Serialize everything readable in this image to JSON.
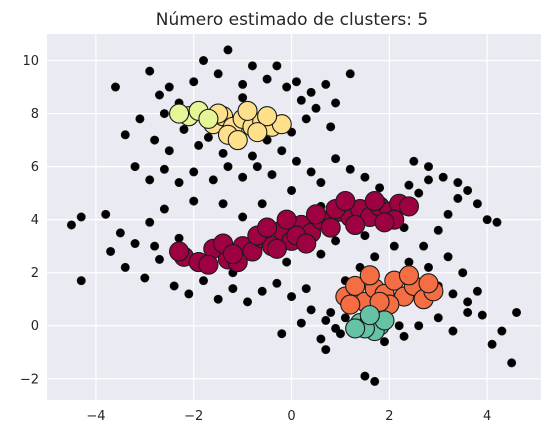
{
  "chart_data": {
    "type": "scatter",
    "title": "Número estimado de clusters: 5",
    "xlabel": "",
    "ylabel": "",
    "xlim": [
      -5.0,
      5.1
    ],
    "ylim": [
      -2.8,
      11.0
    ],
    "xticks": [
      -4,
      -2,
      0,
      2,
      4
    ],
    "yticks": [
      -2,
      0,
      2,
      4,
      6,
      8,
      10
    ],
    "xtick_labels": [
      "−4",
      "−2",
      "0",
      "2",
      "4"
    ],
    "ytick_labels": [
      "−2",
      "0",
      "2",
      "4",
      "6",
      "8",
      "10"
    ],
    "grid": true,
    "plot_background": "#eaeaf2",
    "grid_color": "#ffffff",
    "noise_color": "#000000",
    "cluster_colors": [
      "#9e0142",
      "#f46d43",
      "#fee08b",
      "#e6f598",
      "#66c2a5"
    ],
    "series": [
      {
        "values": [
          [
            -2.9,
            9.6
          ],
          [
            -2.7,
            8.7
          ],
          [
            -2.5,
            9.0
          ],
          [
            -2.3,
            8.4
          ],
          [
            -2.0,
            9.2
          ],
          [
            -1.8,
            10.0
          ],
          [
            -1.5,
            9.5
          ],
          [
            -1.3,
            10.4
          ],
          [
            -1.0,
            9.1
          ],
          [
            -0.8,
            9.8
          ],
          [
            -0.5,
            9.3
          ],
          [
            -0.3,
            9.8
          ],
          [
            -0.1,
            9.0
          ],
          [
            0.1,
            9.2
          ],
          [
            0.4,
            8.8
          ],
          [
            0.7,
            9.1
          ],
          [
            1.2,
            9.5
          ],
          [
            -3.6,
            9.0
          ],
          [
            -3.4,
            7.2
          ],
          [
            -3.1,
            7.8
          ],
          [
            -2.8,
            7.0
          ],
          [
            -2.5,
            6.6
          ],
          [
            -2.2,
            7.4
          ],
          [
            -1.9,
            6.8
          ],
          [
            -1.7,
            7.1
          ],
          [
            -1.4,
            6.5
          ],
          [
            -1.1,
            6.9
          ],
          [
            -0.8,
            6.4
          ],
          [
            -0.5,
            7.0
          ],
          [
            -0.2,
            6.6
          ],
          [
            0.0,
            7.3
          ],
          [
            0.3,
            7.8
          ],
          [
            0.5,
            8.2
          ],
          [
            0.8,
            7.5
          ],
          [
            -3.2,
            6.0
          ],
          [
            -2.9,
            5.5
          ],
          [
            -2.6,
            5.9
          ],
          [
            -2.3,
            5.4
          ],
          [
            -2.0,
            5.8
          ],
          [
            -1.6,
            5.5
          ],
          [
            -1.3,
            6.0
          ],
          [
            -1.0,
            5.6
          ],
          [
            -0.7,
            6.0
          ],
          [
            -0.4,
            5.7
          ],
          [
            0.1,
            6.2
          ],
          [
            0.4,
            5.8
          ],
          [
            -4.5,
            3.8
          ],
          [
            -4.3,
            4.1
          ],
          [
            -3.8,
            4.2
          ],
          [
            -3.5,
            3.5
          ],
          [
            -3.2,
            3.1
          ],
          [
            -2.9,
            3.9
          ],
          [
            -2.6,
            4.4
          ],
          [
            -2.3,
            3.3
          ],
          [
            -2.0,
            4.7
          ],
          [
            -3.4,
            2.2
          ],
          [
            -3.0,
            1.8
          ],
          [
            -2.7,
            2.5
          ],
          [
            -2.4,
            1.5
          ],
          [
            -2.1,
            1.2
          ],
          [
            -1.8,
            1.7
          ],
          [
            -1.5,
            1.0
          ],
          [
            -1.2,
            1.4
          ],
          [
            -0.9,
            0.9
          ],
          [
            -0.6,
            1.3
          ],
          [
            -0.3,
            1.6
          ],
          [
            0.0,
            1.1
          ],
          [
            0.3,
            1.4
          ],
          [
            -4.3,
            1.7
          ],
          [
            0.4,
            0.6
          ],
          [
            0.7,
            0.2
          ],
          [
            0.9,
            -0.1
          ],
          [
            1.1,
            0.3
          ],
          [
            0.6,
            -0.5
          ],
          [
            0.8,
            0.5
          ],
          [
            1.0,
            -0.3
          ],
          [
            0.7,
            -0.9
          ],
          [
            1.5,
            -1.9
          ],
          [
            1.7,
            -2.1
          ],
          [
            2.3,
            -0.4
          ],
          [
            2.6,
            0.0
          ],
          [
            3.0,
            0.3
          ],
          [
            3.3,
            -0.2
          ],
          [
            3.6,
            0.5
          ],
          [
            3.9,
            0.4
          ],
          [
            4.1,
            -0.7
          ],
          [
            4.3,
            -0.2
          ],
          [
            4.5,
            -1.4
          ],
          [
            4.6,
            0.5
          ],
          [
            3.0,
            1.5
          ],
          [
            3.3,
            1.2
          ],
          [
            3.6,
            0.9
          ],
          [
            3.8,
            1.3
          ],
          [
            2.7,
            3.0
          ],
          [
            3.0,
            3.6
          ],
          [
            3.2,
            4.2
          ],
          [
            3.4,
            4.8
          ],
          [
            3.6,
            5.1
          ],
          [
            3.8,
            4.6
          ],
          [
            4.0,
            4.0
          ],
          [
            4.2,
            3.9
          ],
          [
            2.4,
            5.3
          ],
          [
            2.6,
            5.0
          ],
          [
            2.8,
            5.5
          ],
          [
            3.1,
            5.6
          ],
          [
            3.4,
            5.4
          ],
          [
            2.5,
            6.2
          ],
          [
            2.8,
            6.0
          ],
          [
            1.8,
            5.2
          ],
          [
            1.5,
            5.6
          ],
          [
            1.2,
            5.9
          ],
          [
            0.9,
            6.3
          ],
          [
            0.6,
            5.4
          ],
          [
            1.4,
            2.2
          ],
          [
            1.7,
            2.6
          ],
          [
            1.1,
            1.7
          ],
          [
            0.6,
            2.7
          ],
          [
            0.9,
            3.2
          ],
          [
            1.5,
            3.4
          ],
          [
            1.8,
            3.8
          ],
          [
            2.1,
            3.0
          ],
          [
            2.4,
            2.4
          ],
          [
            2.1,
            4.5
          ],
          [
            2.3,
            3.7
          ],
          [
            0.3,
            3.0
          ],
          [
            -0.1,
            2.4
          ],
          [
            -1.2,
            2.0
          ],
          [
            -1.7,
            3.0
          ],
          [
            -2.2,
            2.6
          ],
          [
            -1.0,
            4.1
          ],
          [
            -0.6,
            4.6
          ],
          [
            0.0,
            5.1
          ],
          [
            -1.4,
            4.6
          ],
          [
            0.6,
            4.5
          ],
          [
            -2.8,
            3.0
          ],
          [
            -0.2,
            -0.3
          ],
          [
            0.2,
            0.1
          ],
          [
            1.3,
            0.9
          ],
          [
            2.2,
            0.0
          ],
          [
            1.9,
            -0.6
          ],
          [
            2.0,
            1.3
          ],
          [
            1.2,
            3.9
          ],
          [
            0.8,
            4.0
          ],
          [
            2.8,
            2.2
          ],
          [
            3.2,
            2.6
          ],
          [
            3.5,
            2.0
          ],
          [
            -3.7,
            2.8
          ],
          [
            -2.6,
            8.0
          ],
          [
            -2.2,
            8.1
          ],
          [
            -1.0,
            8.6
          ],
          [
            0.2,
            8.5
          ],
          [
            0.9,
            8.4
          ]
        ]
      },
      {
        "values": [
          [
            -2.2,
            2.6
          ],
          [
            -1.9,
            2.4
          ],
          [
            -1.6,
            2.9
          ],
          [
            -1.3,
            2.5
          ],
          [
            -1.0,
            3.0
          ],
          [
            -0.8,
            2.8
          ],
          [
            -0.6,
            3.3
          ],
          [
            -0.4,
            3.0
          ],
          [
            -0.2,
            3.6
          ],
          [
            0.0,
            3.2
          ],
          [
            0.2,
            3.8
          ],
          [
            0.4,
            3.5
          ],
          [
            0.6,
            4.0
          ],
          [
            0.8,
            3.7
          ],
          [
            1.0,
            4.3
          ],
          [
            1.2,
            4.1
          ],
          [
            1.4,
            4.4
          ],
          [
            1.6,
            4.1
          ],
          [
            1.8,
            4.5
          ],
          [
            2.0,
            4.3
          ],
          [
            2.2,
            4.6
          ],
          [
            2.4,
            4.5
          ],
          [
            -1.7,
            2.3
          ],
          [
            -1.4,
            3.1
          ],
          [
            -1.1,
            2.4
          ],
          [
            -0.7,
            3.4
          ],
          [
            -0.3,
            2.9
          ],
          [
            0.1,
            3.4
          ],
          [
            0.5,
            4.2
          ],
          [
            0.9,
            4.4
          ],
          [
            1.3,
            3.8
          ],
          [
            1.7,
            4.7
          ],
          [
            2.1,
            4.0
          ],
          [
            -2.3,
            2.8
          ],
          [
            -0.5,
            3.7
          ],
          [
            0.3,
            3.1
          ],
          [
            1.1,
            4.7
          ],
          [
            1.9,
            3.9
          ],
          [
            -1.2,
            2.7
          ],
          [
            -0.1,
            4.0
          ]
        ],
        "name": ""
      },
      {
        "values": [
          [
            1.1,
            1.1
          ],
          [
            1.3,
            1.5
          ],
          [
            1.5,
            0.9
          ],
          [
            1.7,
            1.4
          ],
          [
            1.9,
            1.2
          ],
          [
            2.1,
            1.7
          ],
          [
            2.3,
            1.1
          ],
          [
            2.5,
            1.5
          ],
          [
            2.7,
            1.0
          ],
          [
            2.9,
            1.3
          ],
          [
            1.6,
            1.9
          ],
          [
            2.0,
            0.8
          ],
          [
            2.4,
            1.9
          ],
          [
            1.2,
            0.8
          ],
          [
            2.8,
            1.6
          ],
          [
            1.8,
            0.9
          ]
        ]
      },
      {
        "values": [
          [
            -1.6,
            7.6
          ],
          [
            -1.4,
            7.9
          ],
          [
            -1.2,
            7.5
          ],
          [
            -1.0,
            7.8
          ],
          [
            -0.8,
            7.5
          ],
          [
            -0.6,
            7.7
          ],
          [
            -0.4,
            7.5
          ],
          [
            -0.2,
            7.6
          ],
          [
            -1.3,
            7.2
          ],
          [
            -0.9,
            8.1
          ],
          [
            -1.5,
            8.0
          ],
          [
            -0.5,
            7.9
          ],
          [
            -1.1,
            7.0
          ],
          [
            -0.7,
            7.3
          ]
        ]
      },
      {
        "values": [
          [
            -2.1,
            7.9
          ],
          [
            -1.9,
            8.1
          ],
          [
            -1.7,
            7.8
          ],
          [
            -2.3,
            8.0
          ]
        ]
      },
      {
        "values": [
          [
            1.4,
            0.1
          ],
          [
            1.6,
            0.2
          ],
          [
            1.8,
            0.0
          ],
          [
            1.7,
            -0.2
          ],
          [
            1.5,
            -0.1
          ],
          [
            1.9,
            0.2
          ],
          [
            1.6,
            0.4
          ],
          [
            1.3,
            -0.1
          ]
        ]
      }
    ]
  }
}
